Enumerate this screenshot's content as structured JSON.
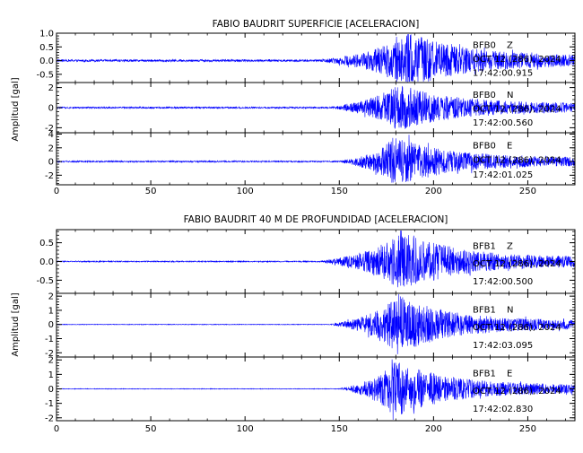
{
  "figure": {
    "trace_color": "#0000ff",
    "axis_color": "#000000"
  },
  "chart_data": [
    {
      "type": "line",
      "title": "FABIO BAUDRIT SUPERFICIE [ACELERACION]",
      "ylabel": "Amplitud [gal]",
      "xlim": [
        0,
        275
      ],
      "xticks": [
        0,
        50,
        100,
        150,
        200,
        250
      ],
      "xtick_labels": [
        "0",
        "50",
        "100",
        "150",
        "200",
        "250"
      ],
      "panels": [
        {
          "ylim": [
            -0.8,
            1.0
          ],
          "yticks": [
            -0.5,
            0.0,
            0.5,
            1.0
          ],
          "ytick_labels": [
            "-0.5",
            "0.0",
            "0.5",
            "1.0"
          ],
          "station": "BFB0",
          "channel": "Z",
          "date": "OCT 12 (286), 2024",
          "time": "17:42:00.915",
          "onset_s": 140,
          "peak_amplitude": 0.9,
          "peak_time_s": 185,
          "pre_event_noise": 0.04
        },
        {
          "ylim": [
            -2.5,
            2.5
          ],
          "yticks": [
            -2,
            0,
            2
          ],
          "ytick_labels": [
            "-2",
            "0",
            "2"
          ],
          "station": "BFB0",
          "channel": "N",
          "date": "OCT 12 (286), 2024",
          "time": "17:42:00.560",
          "onset_s": 145,
          "peak_amplitude": 2.1,
          "peak_time_s": 180,
          "pre_event_noise": 0.08
        },
        {
          "ylim": [
            -3.4,
            4.2
          ],
          "yticks": [
            -2,
            0,
            2,
            4
          ],
          "ytick_labels": [
            "-2",
            "0",
            "2",
            "4"
          ],
          "station": "BFB0",
          "channel": "E",
          "date": "OCT 12 (286), 2024",
          "time": "17:42:01.025",
          "onset_s": 150,
          "peak_amplitude": 3.2,
          "peak_time_s": 178,
          "pre_event_noise": 0.1
        }
      ]
    },
    {
      "type": "line",
      "title": "FABIO BAUDRIT 40 M DE PROFUNDIDAD [ACELERACION]",
      "ylabel": "Amplitud [gal]",
      "xlim": [
        0,
        275
      ],
      "xticks": [
        0,
        50,
        100,
        150,
        200,
        250
      ],
      "xtick_labels": [
        "0",
        "50",
        "100",
        "150",
        "200",
        "250"
      ],
      "panels": [
        {
          "ylim": [
            -0.85,
            0.85
          ],
          "yticks": [
            -0.5,
            0.0,
            0.5
          ],
          "ytick_labels": [
            "-0.5",
            "0.0",
            "0.5"
          ],
          "station": "BFB1",
          "channel": "Z",
          "date": "OCT 12 (286), 2024",
          "time": "17:42:00.500",
          "onset_s": 140,
          "peak_amplitude": 0.75,
          "peak_time_s": 182,
          "pre_event_noise": 0.015
        },
        {
          "ylim": [
            -2.3,
            2.2
          ],
          "yticks": [
            -2,
            -1,
            0,
            1,
            2
          ],
          "ytick_labels": [
            "-2",
            "-1",
            "0",
            "1",
            "2"
          ],
          "station": "BFB1",
          "channel": "N",
          "date": "OCT 12 (286), 2024",
          "time": "17:42:03.095",
          "onset_s": 145,
          "peak_amplitude": 1.9,
          "peak_time_s": 180,
          "pre_event_noise": 0.02
        },
        {
          "ylim": [
            -2.2,
            2.2
          ],
          "yticks": [
            -2,
            -1,
            0,
            1,
            2
          ],
          "ytick_labels": [
            "-2",
            "-1",
            "0",
            "1",
            "2"
          ],
          "station": "BFB1",
          "channel": "E",
          "date": "OCT 12 (286), 2024",
          "time": "17:42:02.830",
          "onset_s": 150,
          "peak_amplitude": 1.8,
          "peak_time_s": 178,
          "pre_event_noise": 0.02
        }
      ]
    }
  ]
}
